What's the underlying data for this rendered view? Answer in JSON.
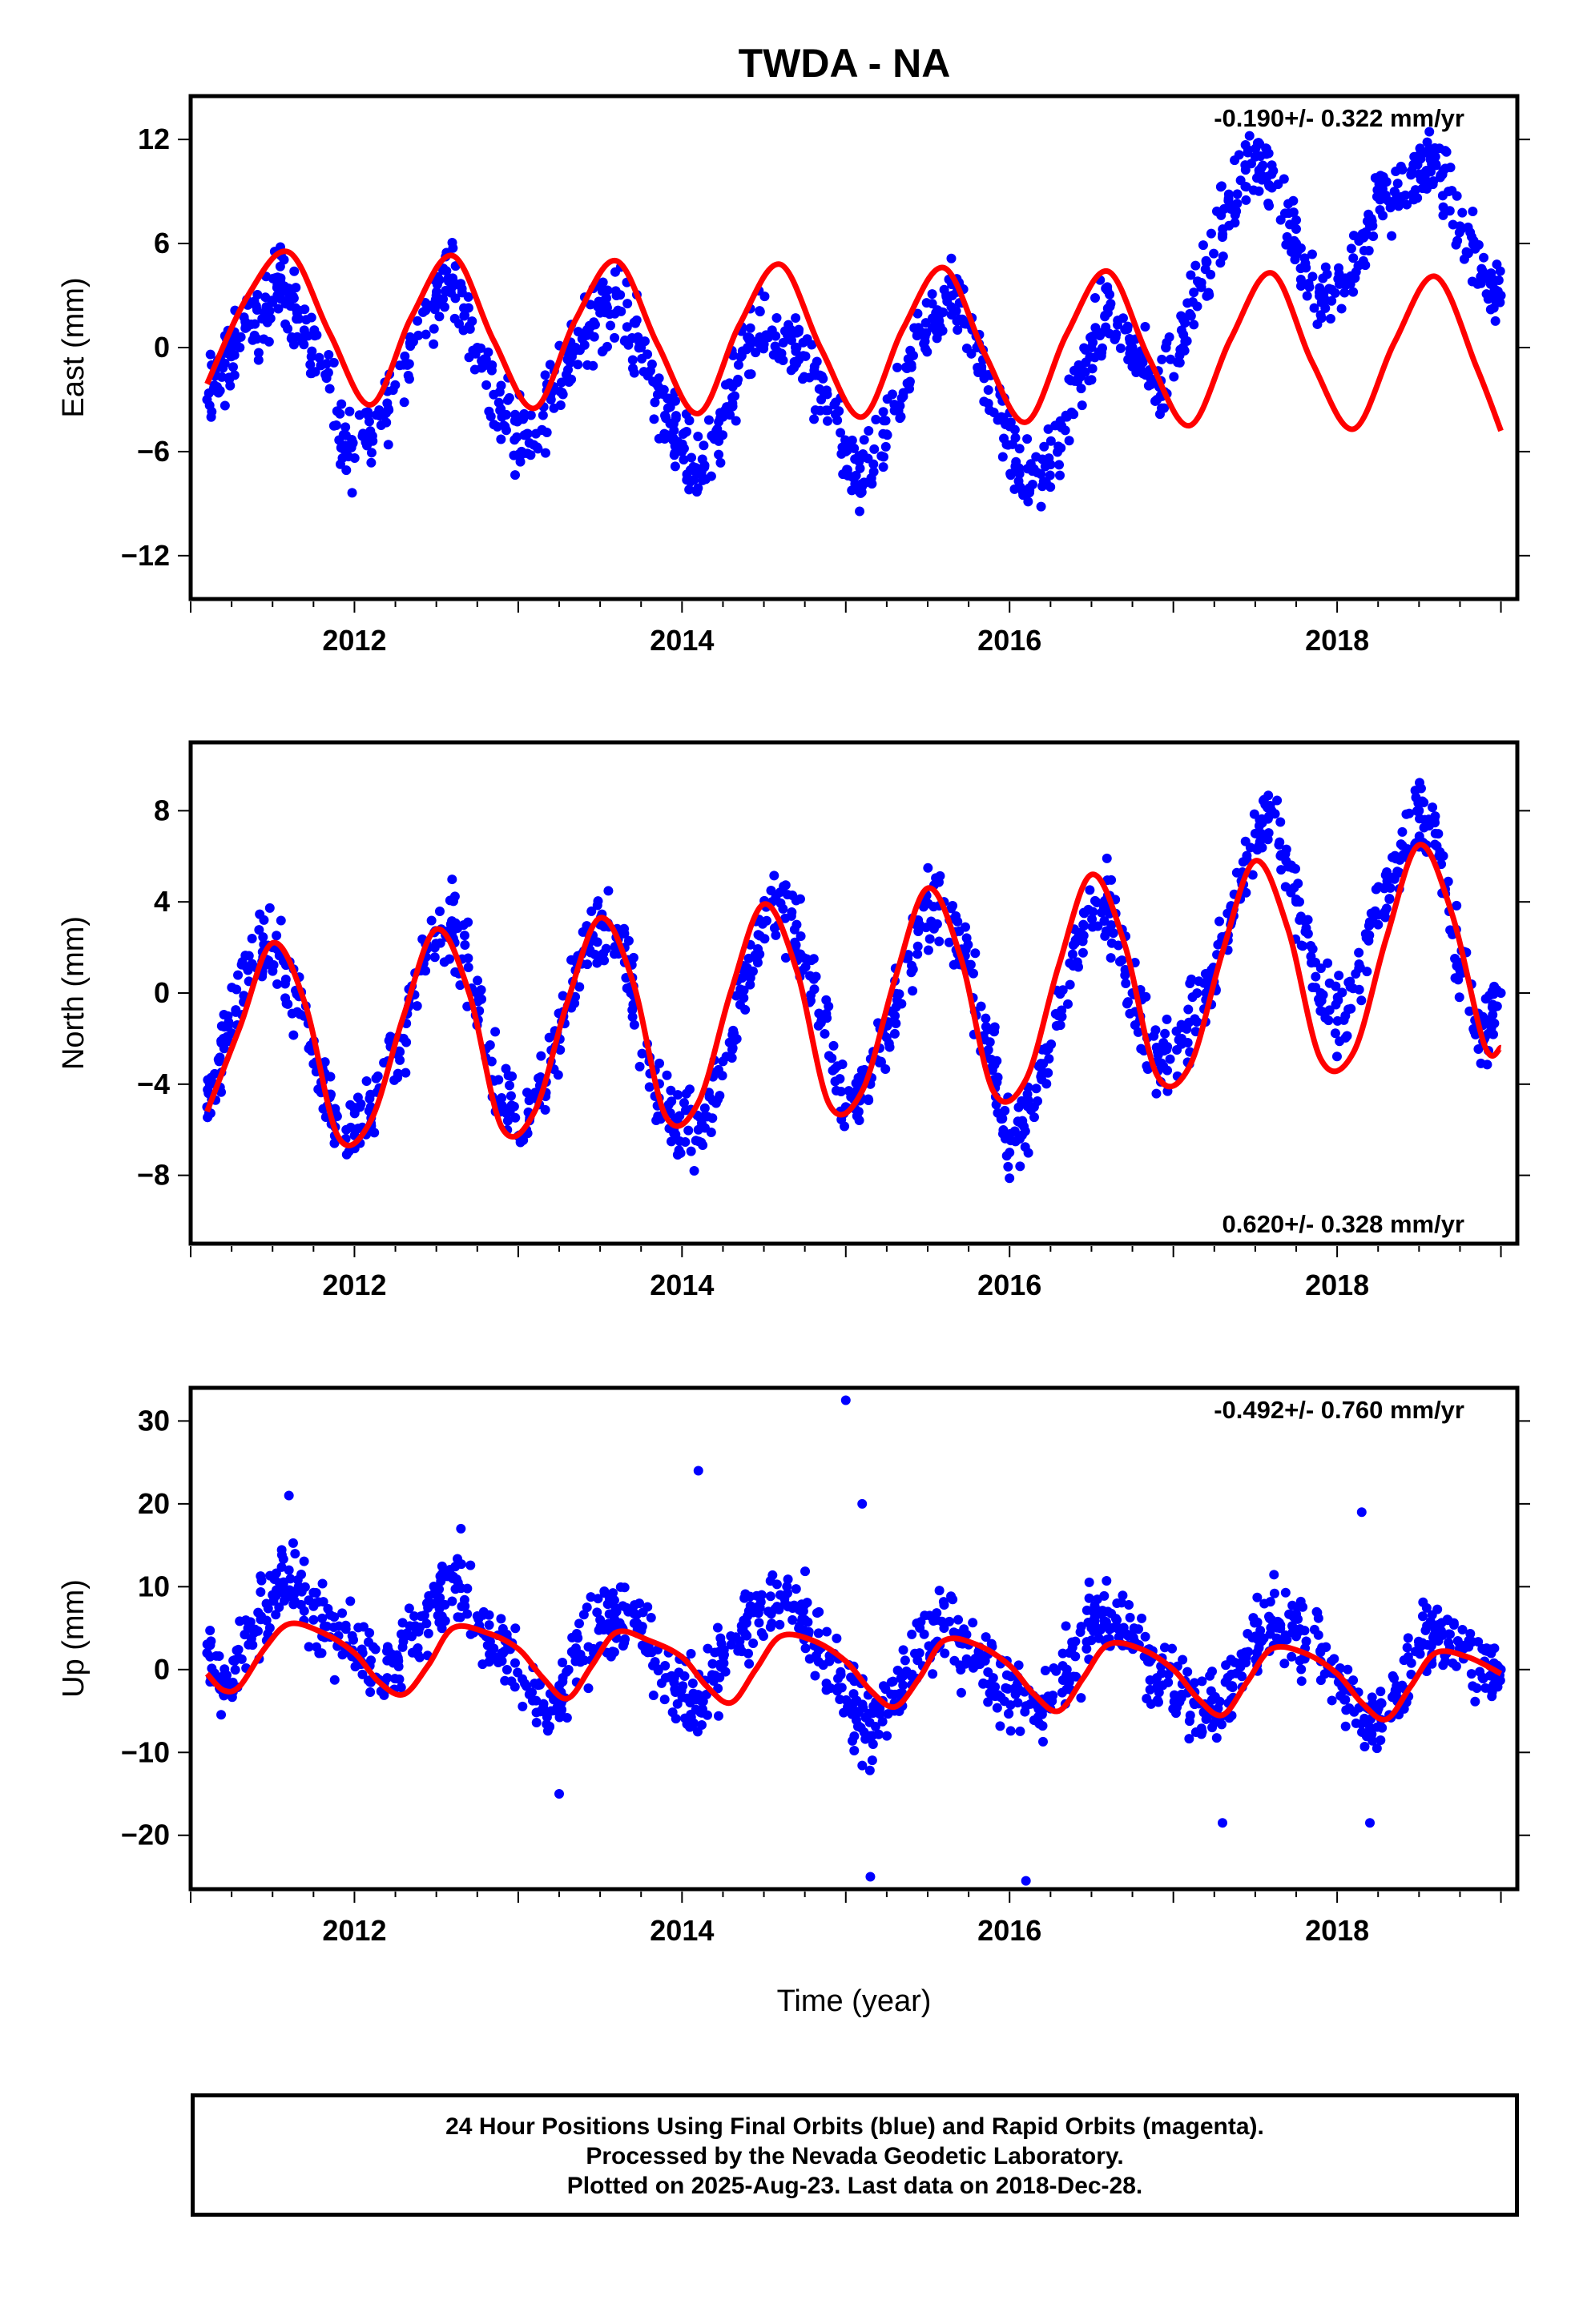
{
  "title": "TWDA - NA",
  "colors": {
    "data": "#0000ff",
    "model": "#ff0000",
    "axis": "#000000"
  },
  "caption": {
    "line1": "24 Hour Positions Using Final Orbits (blue) and Rapid Orbits (magenta).",
    "line2": "Processed by the Nevada Geodetic Laboratory.",
    "line3": "Plotted on 2025-Aug-23. Last data on 2018-Dec-28."
  },
  "chart_data": [
    {
      "type": "scatter",
      "component": "east",
      "ylabel": "East (mm)",
      "xlabel": "",
      "xlim": [
        2011.0,
        2019.1
      ],
      "ylim": [
        -14.5,
        14.5
      ],
      "xticks": [
        "2012",
        "2014",
        "2016",
        "2018"
      ],
      "yticks": [
        "12",
        "6",
        "0",
        "-6",
        "-12"
      ],
      "rate_label": "-0.190+/- 0.322 mm/yr",
      "rate_position": "top-right",
      "series": [
        {
          "role": "observations",
          "color": "#0000ff",
          "x": [
            2011.1,
            2011.2,
            2011.3,
            2011.45,
            2011.55,
            2011.65,
            2011.8,
            2011.95,
            2012.1,
            2012.3,
            2012.5,
            2012.6,
            2012.75,
            2012.9,
            2013.05,
            2013.2,
            2013.35,
            2013.5,
            2013.6,
            2013.75,
            2013.9,
            2014.0,
            2014.1,
            2014.25,
            2014.4,
            2014.55,
            2014.7,
            2014.85,
            2015.0,
            2015.1,
            2015.25,
            2015.4,
            2015.55,
            2015.65,
            2015.8,
            2015.95,
            2016.05,
            2016.2,
            2016.35,
            2016.5,
            2016.6,
            2016.75,
            2016.9,
            2017.05,
            2017.2,
            2017.35,
            2017.5,
            2017.6,
            2017.75,
            2017.9,
            2018.05,
            2018.2,
            2018.35,
            2018.5,
            2018.6,
            2018.75,
            2018.9,
            2019.0
          ],
          "y": [
            -3,
            -1,
            0,
            2,
            4,
            2,
            -1,
            -6,
            -5,
            -1,
            3,
            4,
            0,
            -4,
            -5,
            -3,
            0,
            2,
            3,
            0,
            -4,
            -6,
            -7,
            -4,
            0,
            1,
            0,
            -3,
            -6,
            -8,
            -5,
            -1,
            2,
            3,
            0,
            -4,
            -7,
            -8,
            -4,
            0,
            2,
            0,
            -3,
            1,
            5,
            8,
            11,
            10,
            6,
            3,
            4,
            7,
            9,
            10,
            11,
            7,
            4,
            3
          ]
        },
        {
          "role": "model",
          "color": "#ff0000",
          "x": [
            2011.1,
            2011.35,
            2011.6,
            2011.85,
            2012.1,
            2012.35,
            2012.6,
            2012.85,
            2013.1,
            2013.35,
            2013.6,
            2013.85,
            2014.1,
            2014.35,
            2014.6,
            2014.85,
            2015.1,
            2015.35,
            2015.6,
            2015.85,
            2016.1,
            2016.35,
            2016.6,
            2016.85,
            2017.1,
            2017.35,
            2017.6,
            2017.85,
            2018.1,
            2018.35,
            2018.6,
            2018.85,
            2019.0
          ],
          "y": [
            -2.1,
            3.0,
            5.5,
            0.8,
            -3.3,
            1.8,
            5.3,
            0.4,
            -3.5,
            1.6,
            5.0,
            0.2,
            -3.8,
            1.3,
            4.8,
            -0.1,
            -4.0,
            1.1,
            4.6,
            -0.4,
            -4.3,
            0.8,
            4.4,
            -0.6,
            -4.5,
            0.5,
            4.3,
            -0.9,
            -4.7,
            0.3,
            4.1,
            -1.1,
            -4.8
          ]
        }
      ]
    },
    {
      "type": "scatter",
      "component": "north",
      "ylabel": "North (mm)",
      "xlabel": "",
      "xlim": [
        2011.0,
        2019.1
      ],
      "ylim": [
        -11,
        11
      ],
      "xticks": [
        "2012",
        "2014",
        "2016",
        "2018"
      ],
      "yticks": [
        "8",
        "4",
        "0",
        "-4",
        "-8"
      ],
      "rate_label": "0.620+/- 0.328 mm/yr",
      "rate_position": "bottom-right",
      "series": [
        {
          "role": "observations",
          "color": "#0000ff",
          "x": [
            2011.1,
            2011.2,
            2011.35,
            2011.5,
            2011.65,
            2011.8,
            2011.95,
            2012.1,
            2012.3,
            2012.45,
            2012.6,
            2012.75,
            2012.9,
            2013.05,
            2013.2,
            2013.35,
            2013.5,
            2013.65,
            2013.8,
            2013.95,
            2014.1,
            2014.25,
            2014.4,
            2014.55,
            2014.7,
            2014.85,
            2015.0,
            2015.15,
            2015.3,
            2015.45,
            2015.6,
            2015.75,
            2015.9,
            2016.0,
            2016.15,
            2016.3,
            2016.45,
            2016.6,
            2016.75,
            2016.9,
            2017.05,
            2017.2,
            2017.35,
            2017.5,
            2017.6,
            2017.75,
            2017.9,
            2018.05,
            2018.2,
            2018.35,
            2018.5,
            2018.6,
            2018.75,
            2018.9,
            2019.0
          ],
          "y": [
            -5,
            -2,
            1,
            2,
            0,
            -4,
            -6,
            -5,
            -2,
            2,
            3,
            0,
            -5,
            -6,
            -3,
            1,
            3,
            2,
            -3,
            -6,
            -6,
            -3,
            1,
            4,
            3,
            -1,
            -5,
            -4,
            -1,
            3,
            4,
            1,
            -3,
            -7,
            -5,
            -1,
            3,
            4,
            0,
            -3,
            -2,
            0,
            3,
            7,
            8,
            4,
            0,
            -1,
            3,
            5,
            8,
            7,
            1,
            -2,
            0
          ]
        },
        {
          "role": "model",
          "color": "#ff0000",
          "x": [
            2011.1,
            2011.3,
            2011.5,
            2011.7,
            2011.9,
            2012.1,
            2012.3,
            2012.5,
            2012.7,
            2012.9,
            2013.1,
            2013.3,
            2013.5,
            2013.7,
            2013.9,
            2014.1,
            2014.3,
            2014.5,
            2014.7,
            2014.9,
            2015.1,
            2015.3,
            2015.5,
            2015.7,
            2015.9,
            2016.1,
            2016.3,
            2016.5,
            2016.7,
            2016.9,
            2017.1,
            2017.3,
            2017.5,
            2017.7,
            2017.9,
            2018.1,
            2018.3,
            2018.5,
            2018.7,
            2018.9,
            2019.0
          ],
          "y": [
            -5.2,
            -1.5,
            2.2,
            -0.5,
            -6.3,
            -5.6,
            -1.0,
            2.8,
            0.0,
            -5.9,
            -5.2,
            -0.4,
            3.3,
            0.5,
            -5.4,
            -4.8,
            0.1,
            3.9,
            1.0,
            -4.9,
            -4.3,
            0.6,
            4.6,
            1.6,
            -4.3,
            -3.8,
            1.2,
            5.2,
            2.2,
            -3.6,
            -3.2,
            1.8,
            5.8,
            2.8,
            -2.9,
            -2.6,
            2.4,
            6.5,
            3.5,
            -2.3,
            -2.4
          ]
        }
      ]
    },
    {
      "type": "scatter",
      "component": "up",
      "ylabel": "Up (mm)",
      "xlabel": "Time (year)",
      "xlim": [
        2011.0,
        2019.1
      ],
      "ylim": [
        -26.5,
        34
      ],
      "xticks": [
        "2012",
        "2014",
        "2016",
        "2018"
      ],
      "yticks": [
        "30",
        "20",
        "10",
        "0",
        "-10",
        "-20"
      ],
      "rate_label": "-0.492+/- 0.760 mm/yr",
      "rate_position": "top-right",
      "series": [
        {
          "role": "observations",
          "color": "#0000ff",
          "x": [
            2011.1,
            2011.2,
            2011.35,
            2011.5,
            2011.6,
            2011.75,
            2011.9,
            2012.05,
            2012.2,
            2012.35,
            2012.5,
            2012.6,
            2012.75,
            2012.9,
            2013.05,
            2013.2,
            2013.35,
            2013.5,
            2013.6,
            2013.75,
            2013.9,
            2014.05,
            2014.15,
            2014.3,
            2014.45,
            2014.6,
            2014.75,
            2014.9,
            2015.05,
            2015.15,
            2015.3,
            2015.45,
            2015.6,
            2015.75,
            2015.9,
            2016.05,
            2016.2,
            2016.35,
            2016.5,
            2016.6,
            2016.75,
            2016.9,
            2017.05,
            2017.2,
            2017.35,
            2017.5,
            2017.6,
            2017.75,
            2017.9,
            2018.05,
            2018.2,
            2018.35,
            2018.5,
            2018.6,
            2018.75,
            2018.9,
            2019.0
          ],
          "y": [
            2,
            -3,
            5,
            9,
            12,
            6,
            3,
            2,
            -1,
            4,
            8,
            11,
            5,
            2,
            -2,
            -5,
            1,
            6,
            7,
            5,
            -1,
            -4,
            -3,
            3,
            7,
            9,
            6,
            1,
            -4,
            -8,
            -3,
            2,
            5,
            3,
            -1,
            -4,
            -5,
            0,
            5,
            7,
            4,
            -1,
            -3,
            -6,
            -2,
            4,
            6,
            4,
            1,
            -2,
            -7,
            -3,
            3,
            4,
            3,
            1,
            0
          ]
        },
        {
          "role": "observations_outliers",
          "color": "#0000ff",
          "x": [
            2011.6,
            2012.65,
            2013.25,
            2014.1,
            2015.0,
            2015.1,
            2015.15,
            2016.1,
            2017.3,
            2018.15,
            2018.2
          ],
          "y": [
            21,
            17,
            -15,
            24,
            32.5,
            20,
            -25,
            -25.5,
            -18.5,
            19,
            -18.5
          ]
        },
        {
          "role": "model",
          "color": "#ff0000",
          "x": [
            2011.1,
            2011.2,
            2011.3,
            2011.45,
            2011.6,
            2011.8,
            2012.0,
            2012.15,
            2012.3,
            2012.45,
            2012.6,
            2012.8,
            2013.0,
            2013.15,
            2013.3,
            2013.45,
            2013.6,
            2013.8,
            2014.0,
            2014.15,
            2014.3,
            2014.45,
            2014.6,
            2014.8,
            2015.0,
            2015.15,
            2015.3,
            2015.45,
            2015.6,
            2015.8,
            2016.0,
            2016.15,
            2016.3,
            2016.45,
            2016.6,
            2016.8,
            2017.0,
            2017.15,
            2017.3,
            2017.45,
            2017.6,
            2017.8,
            2018.0,
            2018.15,
            2018.3,
            2018.45,
            2018.6,
            2018.8,
            2019.0
          ],
          "y": [
            -0.5,
            -2.5,
            -2.0,
            2.5,
            5.5,
            4.5,
            2.0,
            -1.5,
            -3.0,
            0.5,
            5.0,
            4.5,
            2.5,
            -1.0,
            -3.5,
            0.5,
            4.5,
            3.5,
            1.5,
            -2.0,
            -4.0,
            0.0,
            4.0,
            3.5,
            1.0,
            -2.5,
            -4.5,
            -1.0,
            3.5,
            3.0,
            0.5,
            -3.0,
            -5.0,
            -1.0,
            3.0,
            2.5,
            0.0,
            -3.5,
            -5.5,
            -1.5,
            2.5,
            2.0,
            -0.5,
            -4.0,
            -6.0,
            -2.0,
            2.0,
            1.5,
            -0.5
          ]
        }
      ]
    }
  ]
}
